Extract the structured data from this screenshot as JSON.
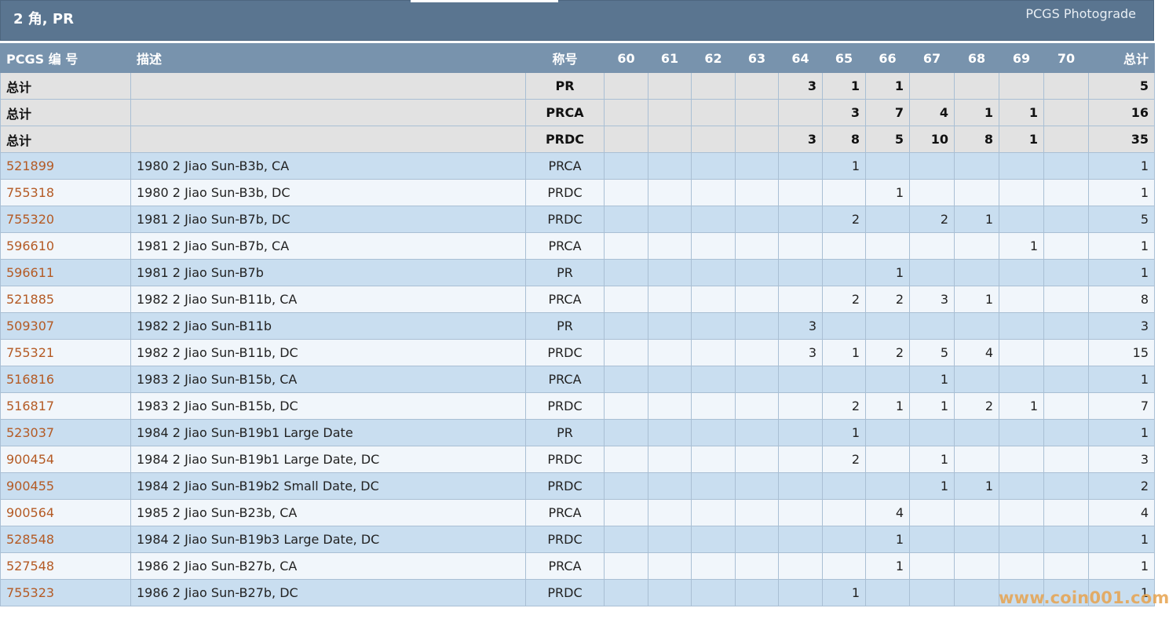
{
  "header": {
    "title": "2 角, PR",
    "subtitle": "PCGS Photograde"
  },
  "columns": {
    "pcgs_no": "PCGS 编 号",
    "desc": "描述",
    "designation": "称号",
    "grades": [
      "60",
      "61",
      "62",
      "63",
      "64",
      "65",
      "66",
      "67",
      "68",
      "69",
      "70"
    ],
    "total": "总计"
  },
  "totals": [
    {
      "label": "总计",
      "designation": "PR",
      "counts": [
        "",
        "",
        "",
        "",
        "3",
        "1",
        "1",
        "",
        "",
        "",
        ""
      ],
      "total": "5"
    },
    {
      "label": "总计",
      "designation": "PRCA",
      "counts": [
        "",
        "",
        "",
        "",
        "",
        "3",
        "7",
        "4",
        "1",
        "1",
        ""
      ],
      "total": "16"
    },
    {
      "label": "总计",
      "designation": "PRDC",
      "counts": [
        "",
        "",
        "",
        "",
        "3",
        "8",
        "5",
        "10",
        "8",
        "1",
        ""
      ],
      "total": "35"
    }
  ],
  "rows": [
    {
      "code": "521899",
      "desc": "1980 2 Jiao Sun-B3b, CA",
      "designation": "PRCA",
      "counts": [
        "",
        "",
        "",
        "",
        "",
        "1",
        "",
        "",
        "",
        "",
        ""
      ],
      "total": "1"
    },
    {
      "code": "755318",
      "desc": "1980 2 Jiao Sun-B3b, DC",
      "designation": "PRDC",
      "counts": [
        "",
        "",
        "",
        "",
        "",
        "",
        "1",
        "",
        "",
        "",
        ""
      ],
      "total": "1"
    },
    {
      "code": "755320",
      "desc": "1981 2 Jiao Sun-B7b, DC",
      "designation": "PRDC",
      "counts": [
        "",
        "",
        "",
        "",
        "",
        "2",
        "",
        "2",
        "1",
        "",
        ""
      ],
      "total": "5"
    },
    {
      "code": "596610",
      "desc": "1981 2 Jiao Sun-B7b, CA",
      "designation": "PRCA",
      "counts": [
        "",
        "",
        "",
        "",
        "",
        "",
        "",
        "",
        "",
        "1",
        ""
      ],
      "total": "1"
    },
    {
      "code": "596611",
      "desc": "1981 2 Jiao Sun-B7b",
      "designation": "PR",
      "counts": [
        "",
        "",
        "",
        "",
        "",
        "",
        "1",
        "",
        "",
        "",
        ""
      ],
      "total": "1"
    },
    {
      "code": "521885",
      "desc": "1982 2 Jiao Sun-B11b, CA",
      "designation": "PRCA",
      "counts": [
        "",
        "",
        "",
        "",
        "",
        "2",
        "2",
        "3",
        "1",
        "",
        ""
      ],
      "total": "8"
    },
    {
      "code": "509307",
      "desc": "1982 2 Jiao Sun-B11b",
      "designation": "PR",
      "counts": [
        "",
        "",
        "",
        "",
        "3",
        "",
        "",
        "",
        "",
        "",
        ""
      ],
      "total": "3"
    },
    {
      "code": "755321",
      "desc": "1982 2 Jiao Sun-B11b, DC",
      "designation": "PRDC",
      "counts": [
        "",
        "",
        "",
        "",
        "3",
        "1",
        "2",
        "5",
        "4",
        "",
        ""
      ],
      "total": "15"
    },
    {
      "code": "516816",
      "desc": "1983 2 Jiao Sun-B15b, CA",
      "designation": "PRCA",
      "counts": [
        "",
        "",
        "",
        "",
        "",
        "",
        "",
        "1",
        "",
        "",
        ""
      ],
      "total": "1"
    },
    {
      "code": "516817",
      "desc": "1983 2 Jiao Sun-B15b, DC",
      "designation": "PRDC",
      "counts": [
        "",
        "",
        "",
        "",
        "",
        "2",
        "1",
        "1",
        "2",
        "1",
        ""
      ],
      "total": "7"
    },
    {
      "code": "523037",
      "desc": "1984 2 Jiao Sun-B19b1 Large Date",
      "designation": "PR",
      "counts": [
        "",
        "",
        "",
        "",
        "",
        "1",
        "",
        "",
        "",
        "",
        ""
      ],
      "total": "1"
    },
    {
      "code": "900454",
      "desc": "1984 2 Jiao Sun-B19b1 Large Date, DC",
      "designation": "PRDC",
      "counts": [
        "",
        "",
        "",
        "",
        "",
        "2",
        "",
        "1",
        "",
        "",
        ""
      ],
      "total": "3"
    },
    {
      "code": "900455",
      "desc": "1984 2 Jiao Sun-B19b2 Small Date, DC",
      "designation": "PRDC",
      "counts": [
        "",
        "",
        "",
        "",
        "",
        "",
        "",
        "1",
        "1",
        "",
        ""
      ],
      "total": "2"
    },
    {
      "code": "900564",
      "desc": "1985 2 Jiao Sun-B23b, CA",
      "designation": "PRCA",
      "counts": [
        "",
        "",
        "",
        "",
        "",
        "",
        "4",
        "",
        "",
        "",
        ""
      ],
      "total": "4"
    },
    {
      "code": "528548",
      "desc": "1984 2 Jiao Sun-B19b3 Large Date, DC",
      "designation": "PRDC",
      "counts": [
        "",
        "",
        "",
        "",
        "",
        "",
        "1",
        "",
        "",
        "",
        ""
      ],
      "total": "1"
    },
    {
      "code": "527548",
      "desc": "1986 2 Jiao Sun-B27b, CA",
      "designation": "PRCA",
      "counts": [
        "",
        "",
        "",
        "",
        "",
        "",
        "1",
        "",
        "",
        "",
        ""
      ],
      "total": "1"
    },
    {
      "code": "755323",
      "desc": "1986 2 Jiao Sun-B27b, DC",
      "designation": "PRDC",
      "counts": [
        "",
        "",
        "",
        "",
        "",
        "1",
        "",
        "",
        "",
        "",
        ""
      ],
      "total": "1"
    }
  ],
  "watermark": "www.coin001.com",
  "colors": {
    "title_bar": "#5a7590",
    "header_row": "#7893ad",
    "total_row": "#e2e2e2",
    "row_odd": "#c9def0",
    "row_even": "#f1f6fb",
    "link": "#b45a24"
  }
}
